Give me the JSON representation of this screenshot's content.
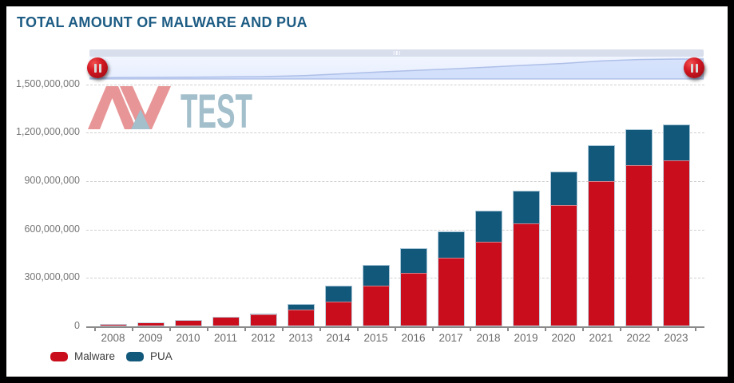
{
  "window": {
    "title": "TOTAL AMOUNT OF MALWARE AND PUA"
  },
  "colors": {
    "title": "#1d5c84",
    "malware": "#c90d1c",
    "pua": "#11587a",
    "grid": "#cfcfcf",
    "axis_line": "#8a8a8a",
    "axis_label": "#6b6b6b",
    "navigator_track": "#e9efff",
    "scrollbar": "#d9deec",
    "handle": "#c01020",
    "logo_red": "#e79596",
    "logo_blue": "#a3bfcc"
  },
  "navigator": {
    "left_handle": "range-handle",
    "right_handle": "range-handle",
    "grip": "drag-grip"
  },
  "watermark": {
    "av": "AV",
    "test": "TEST"
  },
  "legend": [
    {
      "label": "Malware",
      "color": "#c90d1c"
    },
    {
      "label": "PUA",
      "color": "#11587a"
    }
  ],
  "chart_data": {
    "type": "bar",
    "stacked": true,
    "title": "TOTAL AMOUNT OF MALWARE AND PUA",
    "xlabel": "",
    "ylabel": "",
    "ylim": [
      0,
      1500000000
    ],
    "grid": "dashed-horizontal",
    "legend_position": "bottom-left",
    "ytick_values": [
      0,
      300000000,
      600000000,
      900000000,
      1200000000,
      1500000000
    ],
    "ytick_labels": [
      "0",
      "300,000,000",
      "600,000,000",
      "900,000,000",
      "1,200,000,000",
      "1,500,000,000"
    ],
    "categories": [
      "2008",
      "2009",
      "2010",
      "2011",
      "2012",
      "2013",
      "2014",
      "2015",
      "2016",
      "2017",
      "2018",
      "2019",
      "2020",
      "2021",
      "2022",
      "2023"
    ],
    "series": [
      {
        "name": "Malware",
        "color": "#c90d1c",
        "values": [
          15000000,
          25000000,
          40000000,
          60000000,
          75000000,
          105000000,
          155000000,
          250000000,
          330000000,
          425000000,
          525000000,
          640000000,
          750000000,
          900000000,
          1000000000,
          1030000000
        ]
      },
      {
        "name": "PUA",
        "color": "#11587a",
        "values": [
          0,
          0,
          0,
          0,
          5000000,
          35000000,
          95000000,
          130000000,
          155000000,
          165000000,
          190000000,
          200000000,
          210000000,
          220000000,
          220000000,
          220000000
        ]
      }
    ],
    "totals": [
      15000000,
      25000000,
      40000000,
      60000000,
      80000000,
      140000000,
      250000000,
      380000000,
      485000000,
      590000000,
      715000000,
      840000000,
      960000000,
      1120000000,
      1220000000,
      1250000000
    ]
  }
}
